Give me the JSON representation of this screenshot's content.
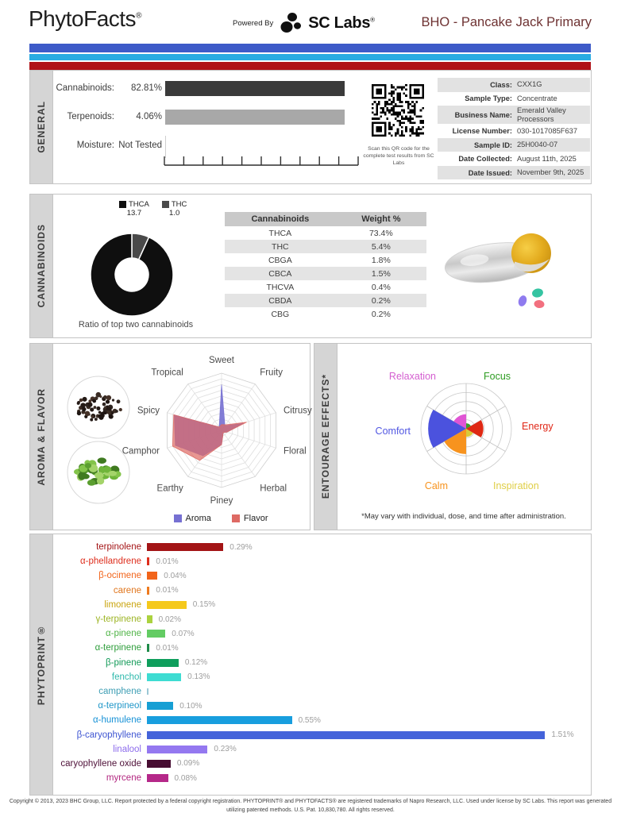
{
  "header": {
    "brand": "PhytoFacts",
    "brand_mark": "®",
    "powered_by": "Powered By",
    "lab": "SC Labs",
    "lab_mark": "®",
    "title": "BHO - Pancake Jack Primary"
  },
  "stripes": {
    "blue": "#3D5AC8",
    "light_blue": "#29ABE2",
    "red": "#B01217"
  },
  "sections": {
    "general": {
      "label": "GENERAL",
      "qr_caption": "Scan this QR code for the complete test results from SC Labs",
      "info_rows": [
        {
          "label": "Class:",
          "value": "CXX1G"
        },
        {
          "label": "Sample Type:",
          "value": "Concentrate"
        },
        {
          "label": "Business Name:",
          "value": "Emerald Valley Processors"
        },
        {
          "label": "License Number:",
          "value": "030-1017085F637"
        },
        {
          "label": "Sample ID:",
          "value": "25H0040-07"
        },
        {
          "label": "Date Collected:",
          "value": "August 11th, 2025"
        },
        {
          "label": "Date Issued:",
          "value": "November 9th, 2025"
        }
      ]
    },
    "cannabinoids": {
      "label": "CANNABINOIDS",
      "donut_caption": "Ratio of top two cannabinoids"
    },
    "aroma_flavor": {
      "label": "AROMA & FLAVOR"
    },
    "entourage": {
      "label": "ENTOURAGE EFFECTS*",
      "footnote": "*May vary with individual, dose, and time after administration."
    },
    "phytoprint": {
      "label": "PHYTOPRINT®"
    }
  },
  "footer": "Copyright © 2013, 2023 BHC Group, LLC. Report protected by a federal copyright registration. PHYTOPRINT® and PHYTOFACTS® are registered trademarks of Napro Research, LLC. Used under license by SC Labs. This report was generated utilizing patented methods. U.S. Pat. 10,830,780. All rights reserved.",
  "chart_data": [
    {
      "id": "general_overview",
      "type": "bar",
      "orientation": "horizontal",
      "rows": [
        {
          "name": "Cannabinoids:",
          "value_label": "82.81%",
          "value": 82.81,
          "bar_color": "#3A3A3A",
          "bar_full": true
        },
        {
          "name": "Terpenoids:",
          "value_label": "4.06%",
          "value": 4.06,
          "bar_color": "#A8A8A8",
          "bar_full": true
        },
        {
          "name": "Moisture:",
          "value_label": "Not Tested",
          "value": null,
          "bar_color": null,
          "bar_full": false
        }
      ]
    },
    {
      "id": "cannabinoid_ratio_donut",
      "type": "pie",
      "title": "Ratio of top two cannabinoids",
      "slices": [
        {
          "name": "THCA",
          "value": 13.7,
          "color": "#0F0F0F"
        },
        {
          "name": "THC",
          "value": 1.0,
          "color": "#4A4A4A"
        }
      ]
    },
    {
      "id": "cannabinoid_table",
      "type": "table",
      "headers": [
        "Cannabinoids",
        "Weight %"
      ],
      "rows": [
        [
          "THCA",
          "73.4%"
        ],
        [
          "THC",
          "5.4%"
        ],
        [
          "CBGA",
          "1.8%"
        ],
        [
          "CBCA",
          "1.5%"
        ],
        [
          "THCVA",
          "0.4%"
        ],
        [
          "CBDA",
          "0.2%"
        ],
        [
          "CBG",
          "0.2%"
        ]
      ]
    },
    {
      "id": "aroma_flavor_radar",
      "type": "radar",
      "axes": [
        "Sweet",
        "Fruity",
        "Citrusy",
        "Floral",
        "Herbal",
        "Piney",
        "Earthy",
        "Camphor",
        "Spicy",
        "Tropical"
      ],
      "scale_max": 10,
      "rings": 10,
      "series": [
        {
          "name": "Aroma",
          "color": "#7670D2",
          "values": [
            8,
            1,
            4,
            1,
            0.5,
            2.5,
            5.5,
            8.5,
            8.7,
            0.7
          ]
        },
        {
          "name": "Flavor",
          "color": "#DE6A64",
          "values": [
            1,
            1.2,
            4.6,
            1,
            0.5,
            2.5,
            6.5,
            9,
            8.8,
            0.7
          ]
        }
      ]
    },
    {
      "id": "entourage_polar",
      "type": "polar",
      "scale_max": 5,
      "rings": 5,
      "sectors": [
        {
          "name": "Focus",
          "value": 0.6,
          "color": "#3A9E28",
          "label_color": "#2E9C22"
        },
        {
          "name": "Relaxation",
          "value": 1.6,
          "color": "#E055D4",
          "label_color": "#D45FD0"
        },
        {
          "name": "Comfort",
          "value": 4.2,
          "color": "#4B52DE",
          "label_color": "#5157E2"
        },
        {
          "name": "Calm",
          "value": 2.8,
          "color": "#F7931E",
          "label_color": "#F7931E"
        },
        {
          "name": "Inspiration",
          "value": 0.9,
          "color": "#D9CB3A",
          "label_color": "#DFCE45"
        },
        {
          "name": "Energy",
          "value": 1.9,
          "color": "#DF2813",
          "label_color": "#E02818"
        }
      ]
    },
    {
      "id": "phytoprint_bars",
      "type": "bar",
      "orientation": "horizontal",
      "unit": "%",
      "bars": [
        {
          "name": "terpinolene",
          "value": 0.29,
          "label": "0.29%",
          "bar_color": "#A31416",
          "label_color": "#A31416"
        },
        {
          "name": "α-phellandrene",
          "value": 0.01,
          "label": "0.01%",
          "bar_color": "#DE2D1C",
          "label_color": "#DE2D1C"
        },
        {
          "name": "β-ocimene",
          "value": 0.04,
          "label": "0.04%",
          "bar_color": "#F2641A",
          "label_color": "#F2641A"
        },
        {
          "name": "carene",
          "value": 0.01,
          "label": "0.01%",
          "bar_color": "#EE7A1E",
          "label_color": "#E0761E"
        },
        {
          "name": "limonene",
          "value": 0.15,
          "label": "0.15%",
          "bar_color": "#F5C91C",
          "label_color": "#C9A40E"
        },
        {
          "name": "γ-terpinene",
          "value": 0.02,
          "label": "0.02%",
          "bar_color": "#ABD23F",
          "label_color": "#9CB423"
        },
        {
          "name": "α-pinene",
          "value": 0.07,
          "label": "0.07%",
          "bar_color": "#63CC63",
          "label_color": "#4FB446"
        },
        {
          "name": "α-terpinene",
          "value": 0.01,
          "label": "0.01%",
          "bar_color": "#1F8C4A",
          "label_color": "#2F9E3C"
        },
        {
          "name": "β-pinene",
          "value": 0.12,
          "label": "0.12%",
          "bar_color": "#0F9E5C",
          "label_color": "#129A58"
        },
        {
          "name": "fenchol",
          "value": 0.13,
          "label": "0.13%",
          "bar_color": "#3EDCD2",
          "label_color": "#2EB9AC"
        },
        {
          "name": "camphene",
          "value": 0,
          "label": "",
          "bar_color": "#9BC8D6",
          "label_color": "#3E9EB4"
        },
        {
          "name": "α-terpineol",
          "value": 0.1,
          "label": "0.10%",
          "bar_color": "#169FD4",
          "label_color": "#1E96C8"
        },
        {
          "name": "α-humulene",
          "value": 0.55,
          "label": "0.55%",
          "bar_color": "#189EDE",
          "label_color": "#1691D6"
        },
        {
          "name": "β-caryophyllene",
          "value": 1.51,
          "label": "1.51%",
          "bar_color": "#4463DA",
          "label_color": "#3E55D2"
        },
        {
          "name": "linalool",
          "value": 0.23,
          "label": "0.23%",
          "bar_color": "#9478F0",
          "label_color": "#8D6CEC"
        },
        {
          "name": "caryophyllene oxide",
          "value": 0.09,
          "label": "0.09%",
          "bar_color": "#470D32",
          "label_color": "#4E1038"
        },
        {
          "name": "myrcene",
          "value": 0.08,
          "label": "0.08%",
          "bar_color": "#B52889",
          "label_color": "#B2257F"
        }
      ]
    }
  ]
}
